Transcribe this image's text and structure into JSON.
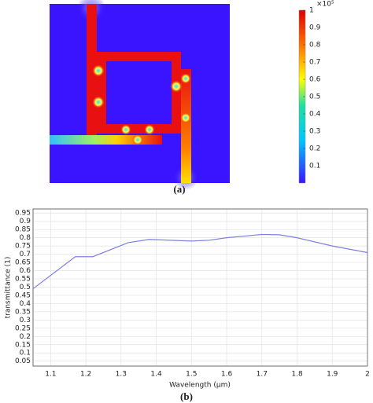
{
  "chart_data": [
    {
      "type": "field-map",
      "caption": "(a)",
      "colorbar": {
        "clim": [
          0,
          1
        ],
        "ticks": [
          0.1,
          0.2,
          0.3,
          0.4,
          0.5,
          0.6,
          0.7,
          0.8,
          0.9,
          1
        ],
        "multiplier": "×10⁵"
      }
    },
    {
      "type": "line",
      "caption": "(b)",
      "xlabel": "Wavelength (µm)",
      "ylabel": "transmittance (1)",
      "x": [
        1.05,
        1.17,
        1.22,
        1.32,
        1.38,
        1.5,
        1.55,
        1.6,
        1.7,
        1.75,
        1.8,
        1.9,
        2.0
      ],
      "series": [
        {
          "name": "transmittance",
          "color": "#7f7fe0",
          "values": [
            0.49,
            0.685,
            0.685,
            0.77,
            0.79,
            0.78,
            0.785,
            0.8,
            0.82,
            0.818,
            0.8,
            0.75,
            0.71
          ]
        }
      ],
      "xlim": [
        1.05,
        2
      ],
      "ylim": [
        0.02,
        0.975
      ],
      "xticks": [
        1.1,
        1.2,
        1.3,
        1.4,
        1.5,
        1.6,
        1.7,
        1.8,
        1.9,
        2
      ],
      "yticks": [
        0.05,
        0.1,
        0.15,
        0.2,
        0.25,
        0.3,
        0.35,
        0.4,
        0.45,
        0.5,
        0.55,
        0.6,
        0.65,
        0.7,
        0.75,
        0.8,
        0.85,
        0.9,
        0.95
      ],
      "grid": true
    }
  ]
}
